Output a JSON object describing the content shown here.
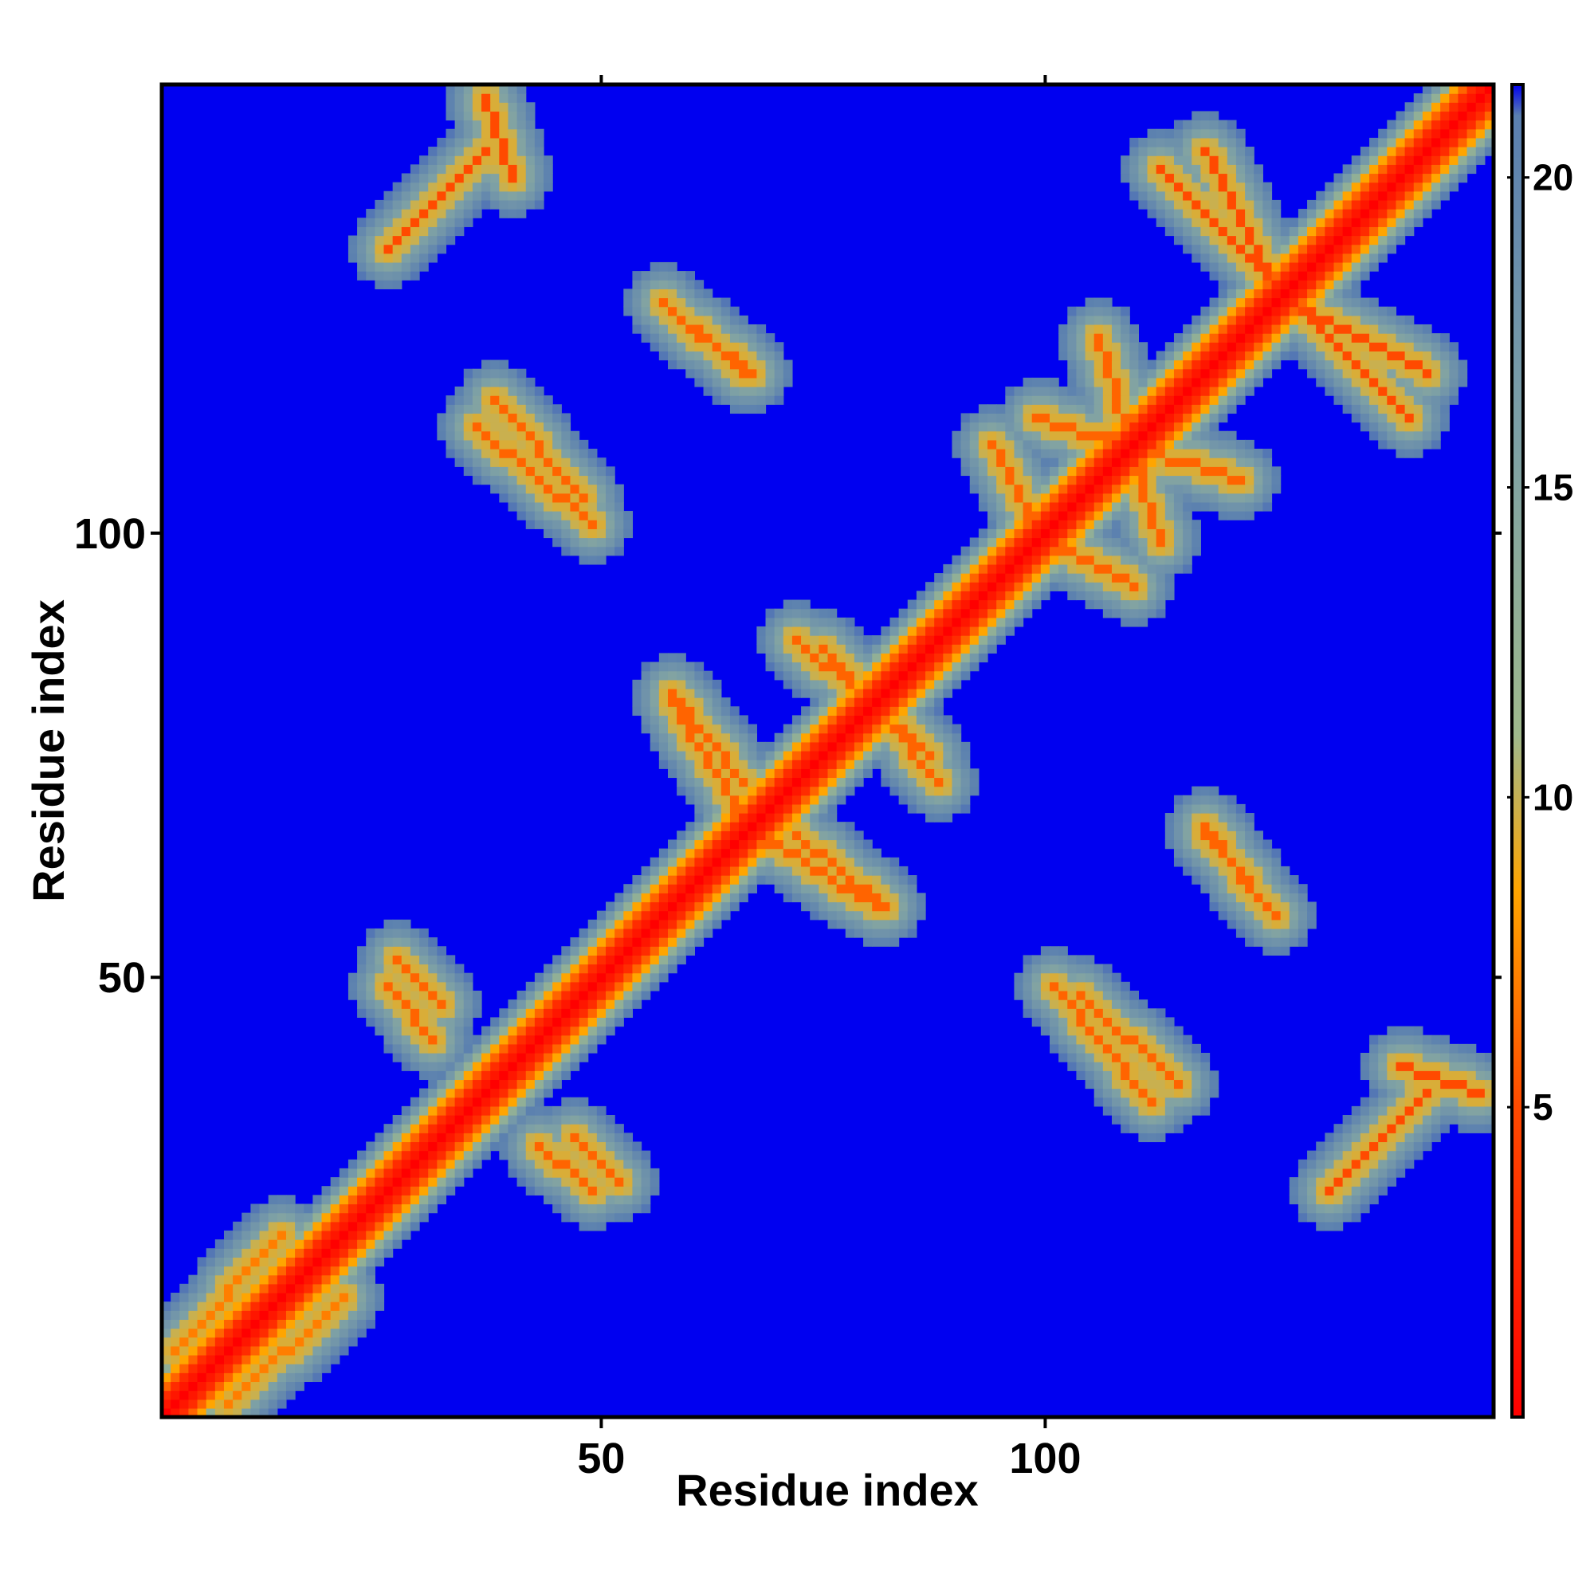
{
  "chart_data": {
    "type": "heatmap",
    "title": "",
    "xlabel": "Residue index",
    "ylabel": "Residue index",
    "n_residues": 150,
    "xlim": [
      1,
      150
    ],
    "ylim": [
      1,
      150
    ],
    "x_ticks": [
      50,
      100
    ],
    "y_ticks": [
      50,
      100
    ],
    "colorbar": {
      "range": [
        0,
        21.5
      ],
      "ticks": [
        5,
        10,
        15,
        20
      ],
      "gradient": [
        {
          "value": 0,
          "color": "#ff0000"
        },
        {
          "value": 5,
          "color": "#ff4a00"
        },
        {
          "value": 8.5,
          "color": "#ffa500"
        },
        {
          "value": 11,
          "color": "#9fb98c"
        },
        {
          "value": 16,
          "color": "#7c9fa6"
        },
        {
          "value": 21,
          "color": "#5a7fb0"
        },
        {
          "value": 21.5,
          "color": "#0000f0"
        }
      ]
    },
    "cutoff_value": 21.5,
    "cutoff_color": "#0000f0",
    "background_color": "#0000f0",
    "diagonal": {
      "distance": 0,
      "color": "#ff0000"
    },
    "contact_bands": [
      {
        "x": [
          37,
          40
        ],
        "y": [
          140,
          149
        ],
        "direction": "anti",
        "distance": 5
      },
      {
        "x": [
          57,
          66
        ],
        "y": [
          118,
          126
        ],
        "direction": "anti",
        "distance": 6
      },
      {
        "x": [
          36,
          49
        ],
        "y": [
          101,
          112
        ],
        "direction": "anti",
        "distance": 6
      },
      {
        "x": [
          106,
          113
        ],
        "y": [
          99,
          122
        ],
        "direction": "anti",
        "distance": 6
      },
      {
        "x": [
          118,
          126
        ],
        "y": [
          128,
          143
        ],
        "direction": "anti",
        "distance": 5
      },
      {
        "x": [
          127,
          141
        ],
        "y": [
          113,
          127
        ],
        "direction": "anti",
        "distance": 5
      },
      {
        "x": [
          94,
          98
        ],
        "y": [
          102,
          110
        ],
        "direction": "anti",
        "distance": 6
      },
      {
        "x": [
          72,
          87
        ],
        "y": [
          75,
          88
        ],
        "direction": "anti",
        "distance": 6
      },
      {
        "x": [
          58,
          66
        ],
        "y": [
          72,
          82
        ],
        "direction": "anti",
        "distance": 6
      },
      {
        "x": [
          68,
          81
        ],
        "y": [
          58,
          66
        ],
        "direction": "anti",
        "distance": 6
      },
      {
        "x": [
          118,
          124
        ],
        "y": [
          59,
          67
        ],
        "direction": "anti",
        "distance": 6
      },
      {
        "x": [
          104,
          115
        ],
        "y": [
          38,
          48
        ],
        "direction": "anti",
        "distance": 6
      },
      {
        "x": [
          43,
          49
        ],
        "y": [
          26,
          31
        ],
        "direction": "anti",
        "distance": 6
      },
      {
        "x": [
          27,
          32
        ],
        "y": [
          47,
          52
        ],
        "direction": "anti",
        "distance": 6
      },
      {
        "x": [
          132,
          143
        ],
        "y": [
          26,
          37
        ],
        "direction": "parallel",
        "distance": 5
      },
      {
        "x": [
          2,
          14
        ],
        "y": [
          8,
          21
        ],
        "direction": "parallel",
        "distance": 7
      }
    ]
  }
}
